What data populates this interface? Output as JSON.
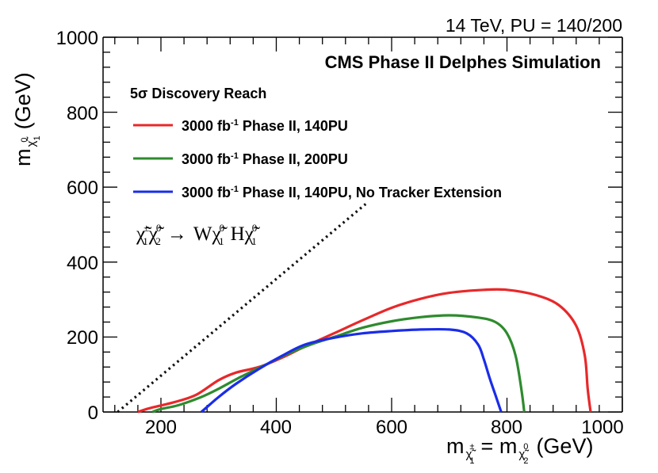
{
  "chart_data": {
    "type": "line",
    "energy_label": "14 TeV, PU = 140/200",
    "experiment_label": "CMS Phase II Delphes Simulation",
    "legend_title": "5σ Discovery Reach",
    "legend_placement": "upper-left",
    "xlim": [
      100,
      1000
    ],
    "ylim": [
      0,
      1000
    ],
    "x_ticks": [
      200,
      400,
      600,
      800,
      1000
    ],
    "y_ticks": [
      0,
      200,
      400,
      600,
      800,
      1000
    ],
    "xlabel": {
      "m": "m",
      "eq": "= m",
      "unit": "(GeV)",
      "sub1": "χ̃",
      "sup1": "±",
      "idx1": "1",
      "sub2": "χ̃",
      "sup2": "0",
      "idx2": "2"
    },
    "ylabel": {
      "m": "m",
      "unit": "(GeV)",
      "sub": "χ̃",
      "sup": "0",
      "idx": "1"
    },
    "process": {
      "lhs1": "χ̃",
      "lhs1_sup": "±",
      "lhs1_sub": "1",
      "lhs2": "χ̃",
      "lhs2_sup": "0",
      "lhs2_sub": "2",
      "arrow": "→",
      "W": "W",
      "w_chi": "χ̃",
      "w_chi_sup": "0",
      "w_chi_sub": "1",
      "H": "H",
      "h_chi": "χ̃",
      "h_chi_sup": "0",
      "h_chi_sub": "1"
    },
    "series": [
      {
        "name_main": "3000 fb",
        "name_sup": "-1",
        "name_rest": " Phase II, 140PU",
        "color": "#e8282a",
        "points": [
          [
            160,
            0
          ],
          [
            180,
            10
          ],
          [
            220,
            25
          ],
          [
            260,
            45
          ],
          [
            300,
            85
          ],
          [
            330,
            105
          ],
          [
            370,
            120
          ],
          [
            410,
            145
          ],
          [
            450,
            175
          ],
          [
            500,
            210
          ],
          [
            550,
            245
          ],
          [
            600,
            278
          ],
          [
            650,
            302
          ],
          [
            700,
            318
          ],
          [
            760,
            326
          ],
          [
            800,
            326
          ],
          [
            850,
            312
          ],
          [
            890,
            285
          ],
          [
            920,
            230
          ],
          [
            935,
            150
          ],
          [
            940,
            60
          ],
          [
            945,
            0
          ]
        ]
      },
      {
        "name_main": "3000 fb",
        "name_sup": "-1",
        "name_rest": " Phase II, 200PU",
        "color": "#2e8b2e",
        "points": [
          [
            185,
            0
          ],
          [
            200,
            8
          ],
          [
            230,
            18
          ],
          [
            270,
            40
          ],
          [
            300,
            62
          ],
          [
            340,
            95
          ],
          [
            380,
            125
          ],
          [
            420,
            155
          ],
          [
            460,
            180
          ],
          [
            500,
            200
          ],
          [
            550,
            225
          ],
          [
            600,
            242
          ],
          [
            650,
            253
          ],
          [
            700,
            258
          ],
          [
            750,
            252
          ],
          [
            780,
            240
          ],
          [
            800,
            210
          ],
          [
            815,
            150
          ],
          [
            825,
            60
          ],
          [
            830,
            0
          ]
        ]
      },
      {
        "name_main": "3000 fb",
        "name_sup": "-1",
        "name_rest": " Phase II, 140PU, No Tracker Extension",
        "color": "#1a2de8",
        "points": [
          [
            270,
            0
          ],
          [
            285,
            20
          ],
          [
            300,
            40
          ],
          [
            330,
            75
          ],
          [
            370,
            115
          ],
          [
            410,
            150
          ],
          [
            450,
            180
          ],
          [
            500,
            198
          ],
          [
            550,
            210
          ],
          [
            600,
            216
          ],
          [
            650,
            220
          ],
          [
            700,
            220
          ],
          [
            730,
            210
          ],
          [
            750,
            180
          ],
          [
            760,
            140
          ],
          [
            770,
            90
          ],
          [
            780,
            45
          ],
          [
            790,
            0
          ]
        ]
      }
    ],
    "diagonal": {
      "style": "dotted",
      "points": [
        [
          125,
          0
        ],
        [
          555,
          555
        ]
      ]
    }
  }
}
